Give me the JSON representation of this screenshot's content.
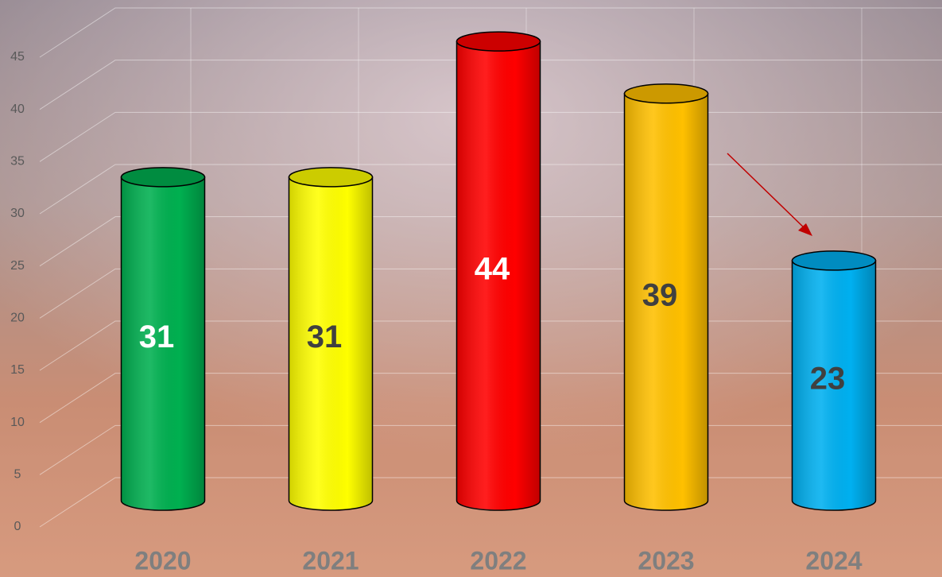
{
  "chart_data": {
    "type": "bar",
    "categories": [
      "2020",
      "2021",
      "2022",
      "2023",
      "2024"
    ],
    "values": [
      31,
      31,
      44,
      39,
      23
    ],
    "colors": [
      "#00b050",
      "#ffff00",
      "#ff0000",
      "#ffc000",
      "#00b0f0"
    ],
    "label_colors": [
      "#ffffff",
      "#404040",
      "#ffffff",
      "#404040",
      "#404040"
    ],
    "ylim": [
      0,
      45
    ],
    "yticks": [
      0,
      5,
      10,
      15,
      20,
      25,
      30,
      35,
      40,
      45
    ],
    "grid": true
  }
}
